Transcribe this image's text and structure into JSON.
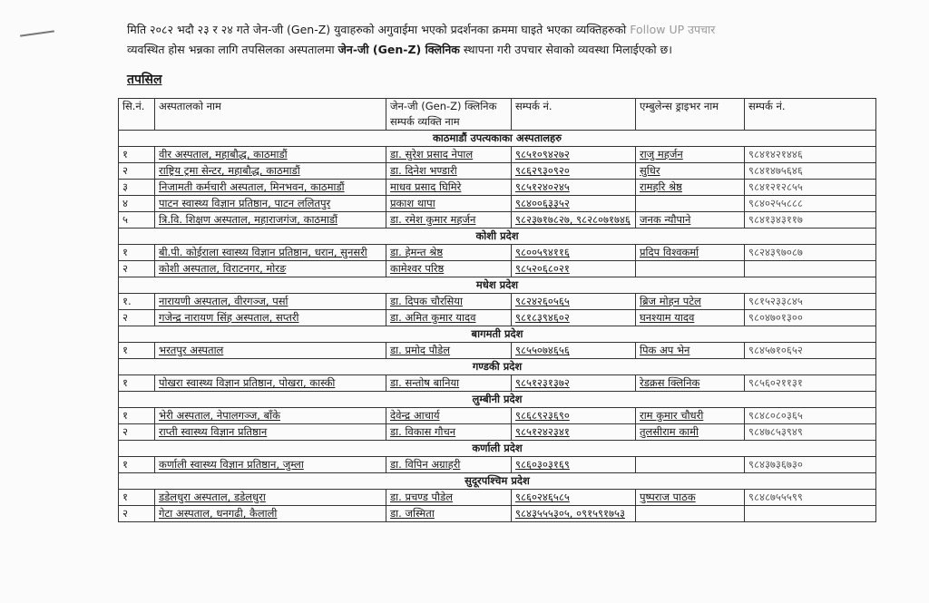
{
  "intro": {
    "line_a": "मिति २०८२ भदौ २३ र २४ गते जेन-जी (Gen-Z) युवाहरुको अगुवाईमा भएको प्रदर्शनका क्रममा घाइते भएका व्यक्तिहरुको",
    "line_a_faded": "Follow UP उपचार",
    "line_b1": "व्यवस्थित होस भन्नका लागि तपसिलका अस्पतालमा",
    "line_b_bold": "जेन-जी (Gen-Z) क्लिनिक",
    "line_b2": "स्थापना गरी उपचार सेवाको व्यवस्था मिलाईएको छ।"
  },
  "subtitle": "तपसिल",
  "table": {
    "headers": [
      "सि.नं.",
      "अस्पतालको नाम",
      "जेन-जी (Gen-Z) क्लिनिक सम्पर्क व्यक्ति नाम",
      "सम्पर्क नं.",
      "एम्बुलेन्स ड्राइभर नाम",
      "सम्पर्क नं."
    ],
    "sections": [
      {
        "title": "काठमाडौं उपत्यकाका अस्पतालहरु",
        "rows": [
          [
            "१",
            "वीर अस्पताल, महाबौद्ध, काठमाडौं",
            "डा. सुरेश प्रसाद नेपाल",
            "९८५१०९४२७२",
            "राजु महर्जन",
            "९८४१४२१४४६"
          ],
          [
            "२",
            "राष्ट्रिय ट्रमा सेन्टर, महाबौद्ध, काठमाडौं",
            "डा. दिनेश भण्डारी",
            "९८६२९३०९२०",
            "सुधिर",
            "९८४१४७५६४६"
          ],
          [
            "३",
            "निजामती कर्मचारी अस्पताल, मिनभवन, काठमाडौं",
            "माधव प्रसाद घिमिरे",
            "९८५१२४०२४५",
            "रामहरि श्रेष्ठ",
            "९८४१२१२८५५"
          ],
          [
            "४",
            "पाटन स्वास्थ्य विज्ञान प्रतिष्ठान, पाटन ललितपुर",
            "प्रकाश थापा",
            "९८४००६३३५२",
            "",
            "९८४०२५५८८८"
          ],
          [
            "५",
            "त्रि.वि. शिक्षण अस्पताल, महाराजगंज, काठमाडौं",
            "डा. रमेश कुमार महर्जन",
            "९८२३७१७८२७, ९८२८०७१७४६",
            "जनक न्यौपाने",
            "९८४१३४३११७"
          ]
        ]
      },
      {
        "title": "कोशी प्रदेश",
        "rows": [
          [
            "१",
            "बी.पी. कोईराला स्वास्थ्य विज्ञान प्रतिष्ठान, धरान, सुनसरी",
            "डा. हेमन्त श्रेष्ठ",
            "९८००५९४११६",
            "प्रदिप विश्वकर्मा",
            "९८२४३९७०८७"
          ],
          [
            "२",
            "कोशी अस्पताल, विराटनगर, मोरङ",
            "कामेश्वर परिष्ठ",
            "९८५२०६८०२१",
            "",
            ""
          ]
        ]
      },
      {
        "title": "मधेश प्रदेश",
        "rows": [
          [
            "१.",
            "नारायणी अस्पताल, वीरगञ्ज, पर्सा",
            "डा. दिपक चौरसिया",
            "९८२४२६०५६५",
            "ब्रिज मोहन पटेल",
            "९८१५२३३८४५"
          ],
          [
            "२",
            "गजेन्द्र नारायण सिंह अस्पताल, सप्तरी",
            "डा. अमित कुमार यादव",
            "९८१८३९४६०२",
            "घनश्याम यादव",
            "९८०४७०१३००"
          ]
        ]
      },
      {
        "title": "बागमती प्रदेश",
        "rows": [
          [
            "१",
            "भरतपुर अस्पताल",
            "डा. प्रमोद पौडेल",
            "९८५५०७४६५६",
            "पिक अप भेन",
            "९८४५७१०६५२"
          ]
        ]
      },
      {
        "title": "गण्डकी प्रदेश",
        "rows": [
          [
            "१",
            "पोखरा स्वास्थ्य विज्ञान प्रतिष्ठान, पोखरा, कास्की",
            "डा. सन्तोष बानिया",
            "९८५१२३१३७२",
            "रेडक्रस क्लिनिक",
            "९८५६०२११३१"
          ]
        ]
      },
      {
        "title": "लुम्बीनी प्रदेश",
        "rows": [
          [
            "१",
            "भेरी अस्पताल, नेपालगञ्ज, बाँके",
            "देवेन्द्र आचार्य",
            "९८६८९२३६९०",
            "राम कुमार चौधरी",
            "९८४८०८०३६५"
          ],
          [
            "२",
            "राप्ती स्वास्थ्य विज्ञान प्रतिष्ठान",
            "डा. विकास गौचन",
            "९८५१२४२३४१",
            "तुलसीराम कामी",
            "९८४७८५३९४९"
          ]
        ]
      },
      {
        "title": "कर्णाली प्रदेश",
        "rows": [
          [
            "१",
            "कर्णाली स्वास्थ्य विज्ञान प्रतिष्ठान, जुम्ला",
            "डा. विपिन अग्राहरी",
            "९८६०३०३१६९",
            "",
            "९८४३७३६७३०"
          ]
        ]
      },
      {
        "title": "सुदूरपश्चिम प्रदेश",
        "rows": [
          [
            "१",
            "डडेलधुरा अस्पताल, डडेलधुरा",
            "डा. प्रचण्ड पौडेल",
            "९८६०२४६५८५",
            "पुष्पराज पाठक",
            "९८४८७५५५९९"
          ],
          [
            "२",
            "गेटा अस्पताल, धनगढी, कैलाली",
            "डा. जस्मिता",
            "९८४३५५५३०५, ०९१५९१७५३",
            "",
            ""
          ]
        ]
      }
    ]
  }
}
